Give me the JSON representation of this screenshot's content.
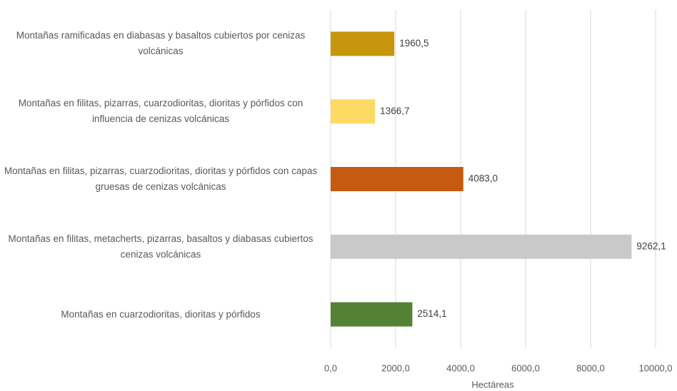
{
  "chart_data": {
    "type": "barh",
    "categories": [
      "Montañas ramificadas en diabasas y basaltos cubiertos por cenizas volcánicas",
      "Montañas en filitas, pizarras, cuarzodioritas, dioritas y pórfidos con influencia de cenizas volcánicas",
      "Montañas en filitas, pizarras, cuarzodioritas, dioritas y pórfidos con capas gruesas de cenizas volcánicas",
      "Montañas en filitas, metacherts, pizarras, basaltos y diabasas cubiertos cenizas volcánicas",
      "Montañas en cuarzodioritas, dioritas y pórfidos"
    ],
    "values": [
      1960.5,
      1366.7,
      4083.0,
      9262.1,
      2514.1
    ],
    "value_labels": [
      "1960,5",
      "1366,7",
      "4083,0",
      "9262,1",
      "2514,1"
    ],
    "colors": [
      "#c8960c",
      "#ffd966",
      "#c55a11",
      "#c9c9c9",
      "#548235"
    ],
    "xlabel": "Hectáreas",
    "xlim": [
      0,
      10000
    ],
    "xticks": [
      {
        "value": 0,
        "label": "0,0"
      },
      {
        "value": 2000,
        "label": "2000,0"
      },
      {
        "value": 4000,
        "label": "4000,0"
      },
      {
        "value": 6000,
        "label": "6000,0"
      },
      {
        "value": 8000,
        "label": "8000,0"
      },
      {
        "value": 10000,
        "label": "10000,0"
      }
    ],
    "grid": true
  }
}
